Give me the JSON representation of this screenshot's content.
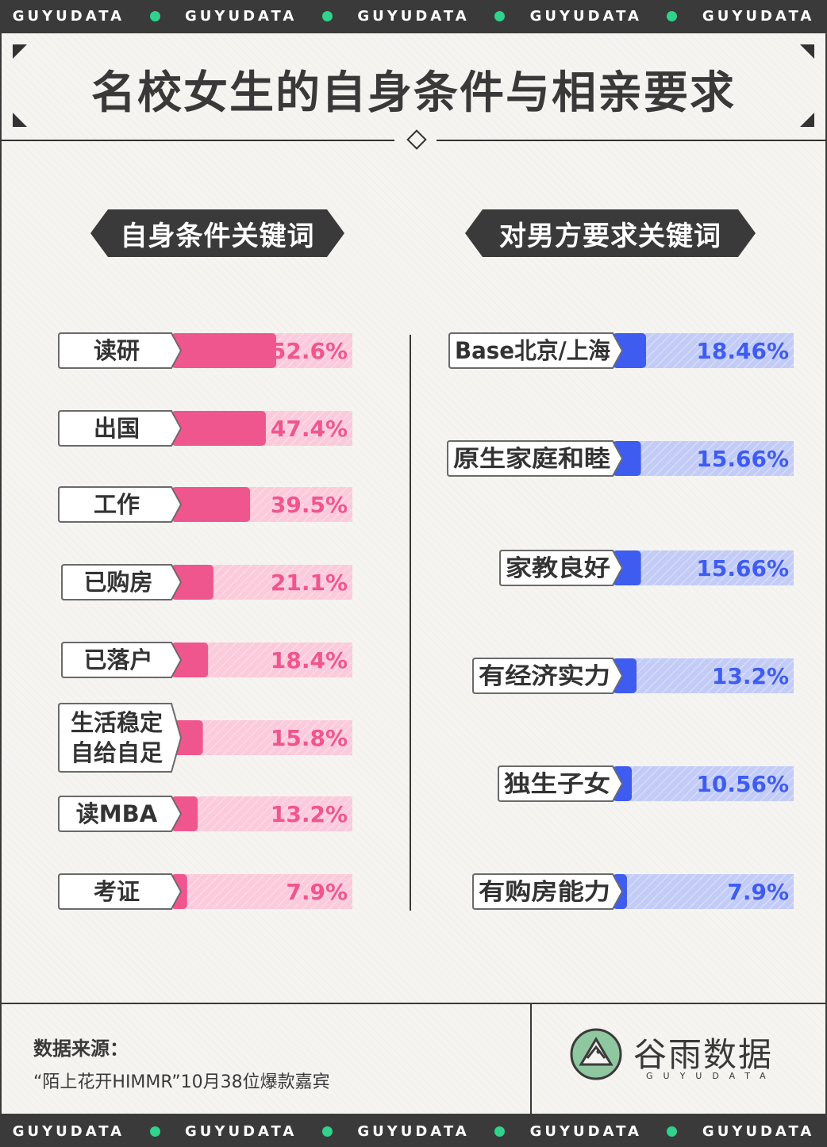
{
  "header_strip": {
    "words": [
      "GUYUDATA",
      "GUYUDATA",
      "GUYUDATA",
      "GUYUDATA",
      "GUYUDATA"
    ],
    "dot_color": "#2fd38c"
  },
  "title": "名校女生的自身条件与相亲要求",
  "colors": {
    "pink": "#f0568e",
    "pink_light": "#fbcadb",
    "blue": "#3f5cf0",
    "blue_light": "#c3ccf7",
    "dark": "#3b3a3a",
    "background": "#f5f4f1"
  },
  "chart_data": [
    {
      "type": "bar",
      "orientation": "horizontal",
      "title": "自身条件关键词",
      "categories": [
        "读研",
        "出国",
        "工作",
        "已购房",
        "已落户",
        "生活稳定自给自足",
        "读MBA",
        "考证"
      ],
      "category_display_lines": [
        [
          "读研"
        ],
        [
          "出国"
        ],
        [
          "工作"
        ],
        [
          "已购房"
        ],
        [
          "已落户"
        ],
        [
          "生活稳定",
          "自给自足"
        ],
        [
          "读MBA"
        ],
        [
          "考证"
        ]
      ],
      "values": [
        52.6,
        47.4,
        39.5,
        21.1,
        18.4,
        15.8,
        13.2,
        7.9
      ],
      "value_labels": [
        "52.6%",
        "47.4%",
        "39.5%",
        "21.1%",
        "18.4%",
        "15.8%",
        "13.2%",
        "7.9%"
      ],
      "unit": "%",
      "color": "#f0568e",
      "track_color": "#fbcadb"
    },
    {
      "type": "bar",
      "orientation": "horizontal",
      "title": "对男方要求关键词",
      "categories": [
        "Base北京/上海",
        "原生家庭和睦",
        "家教良好",
        "有经济实力",
        "独生子女",
        "有购房能力"
      ],
      "values": [
        18.46,
        15.66,
        15.66,
        13.2,
        10.56,
        7.9
      ],
      "value_labels": [
        "18.46%",
        "15.66%",
        "15.66%",
        "13.2%",
        "10.56%",
        "7.9%"
      ],
      "unit": "%",
      "color": "#3f5cf0",
      "track_color": "#c3ccf7"
    }
  ],
  "footer": {
    "source_label": "数据来源：",
    "source_text": "“陌上花开HIMMR”10月38位爆款嘉宾",
    "logo_text": "谷雨数据",
    "logo_sub": "GUYUDATA"
  }
}
